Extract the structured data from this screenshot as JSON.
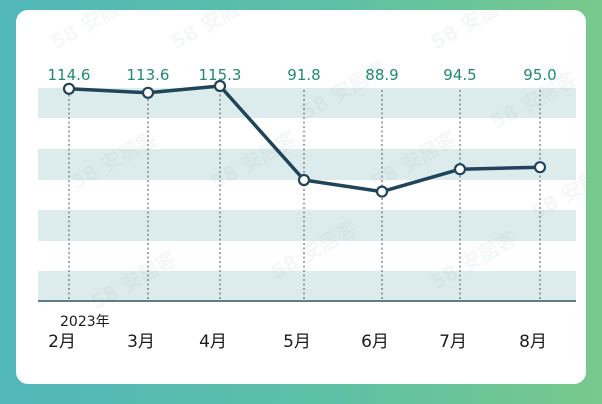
{
  "chart_data": {
    "type": "line",
    "categories": [
      "2月",
      "3月",
      "4月",
      "5月",
      "6月",
      "7月",
      "8月"
    ],
    "values": [
      114.6,
      113.6,
      115.3,
      91.8,
      88.9,
      94.5,
      95.0
    ],
    "value_labels": [
      "114.6",
      "113.6",
      "115.3",
      "91.8",
      "88.9",
      "94.5",
      "95.0"
    ],
    "year_label": "2023年",
    "ylim": [
      60,
      120
    ],
    "colors": {
      "line": "#20445a",
      "band": "#dcecec",
      "value_text": "#1f8a72",
      "background": "#5dc0a6"
    }
  },
  "watermark": "58 安居客"
}
